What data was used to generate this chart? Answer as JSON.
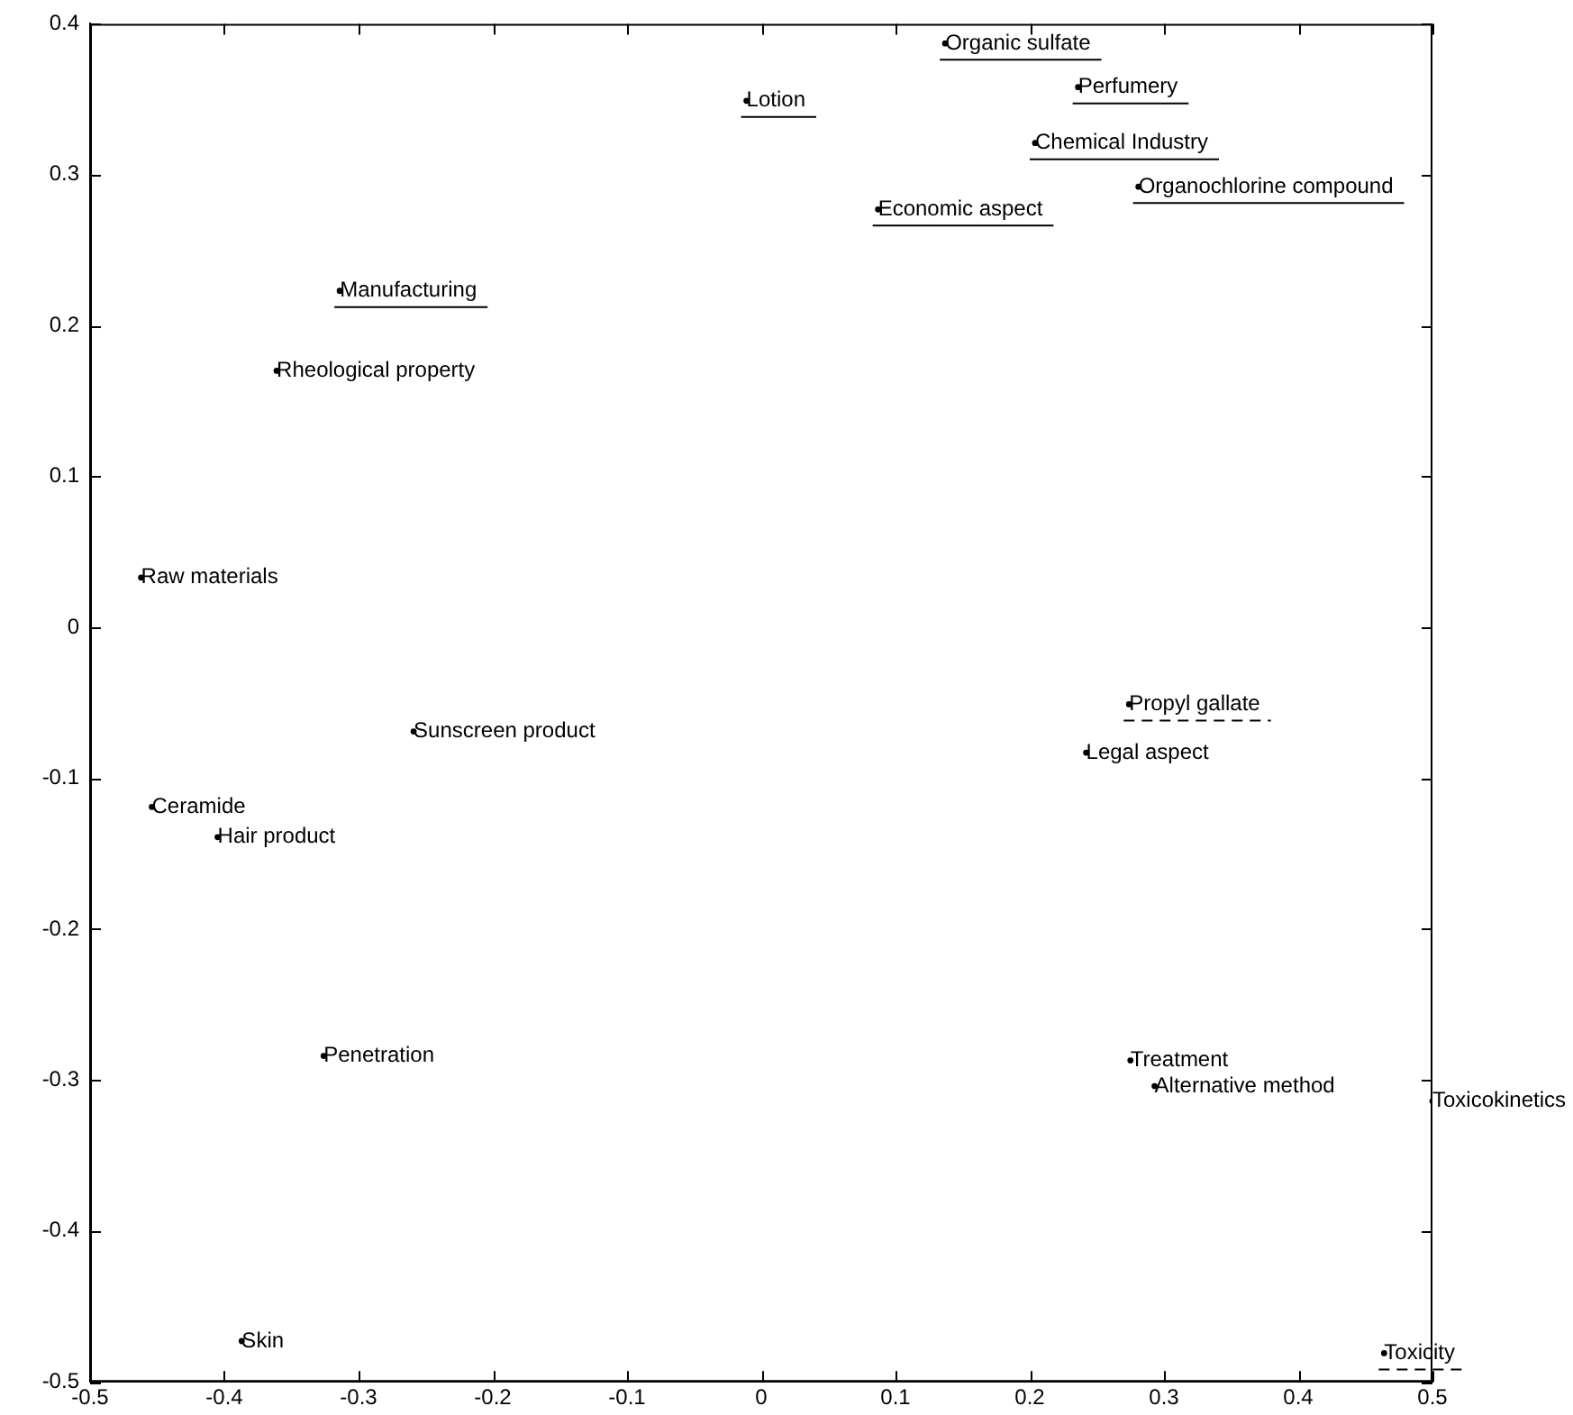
{
  "chart_data": {
    "type": "scatter",
    "xlim": [
      -0.5,
      0.5
    ],
    "xticks": [
      -0.5,
      -0.4,
      -0.3,
      -0.2,
      -0.1,
      0,
      0.1,
      0.2,
      0.3,
      0.4,
      0.5
    ],
    "ylim": [
      -0.5,
      0.4
    ],
    "yticks": [
      -0.5,
      -0.4,
      -0.3,
      -0.2,
      -0.1,
      0,
      0.1,
      0.2,
      0.3,
      0.4
    ],
    "series": [
      {
        "color": "#000000",
        "x": [
          -0.361,
          -0.462,
          -0.259,
          0.242,
          -0.454,
          -0.405,
          0.275,
          0.293,
          -0.326,
          0.5,
          -0.387
        ],
        "values": [
          0.17,
          0.033,
          -0.069,
          -0.083,
          -0.119,
          -0.139,
          -0.287,
          -0.304,
          -0.284,
          -0.314,
          -0.473
        ],
        "value_labels": [
          "Rheological property",
          "Raw materials",
          "Sunscreen product",
          "Legal aspect",
          "Ceramide",
          "Hair product",
          "Treatment",
          "Alternative method",
          "Penetration",
          "Toxicokinetics",
          "Skin"
        ]
      },
      {
        "color": "#000000",
        "line_style": "solid",
        "x": [
          0.137,
          0.236,
          -0.011,
          0.204,
          0.281,
          0.087,
          -0.314
        ],
        "values": [
          0.387,
          0.358,
          0.349,
          0.321,
          0.292,
          0.277,
          0.223
        ],
        "value_labels": [
          "Organic sulfate",
          "Perfumery",
          "Lotion",
          "Chemical Industry",
          "Organochlorine compound",
          "Economic aspect",
          "Manufacturing"
        ]
      },
      {
        "color": "#000000",
        "line_style": "dashed",
        "x": [
          0.274,
          0.464
        ],
        "values": [
          -0.051,
          -0.481
        ],
        "value_labels": [
          "Propyl gallate",
          "Toxicity"
        ]
      }
    ]
  }
}
